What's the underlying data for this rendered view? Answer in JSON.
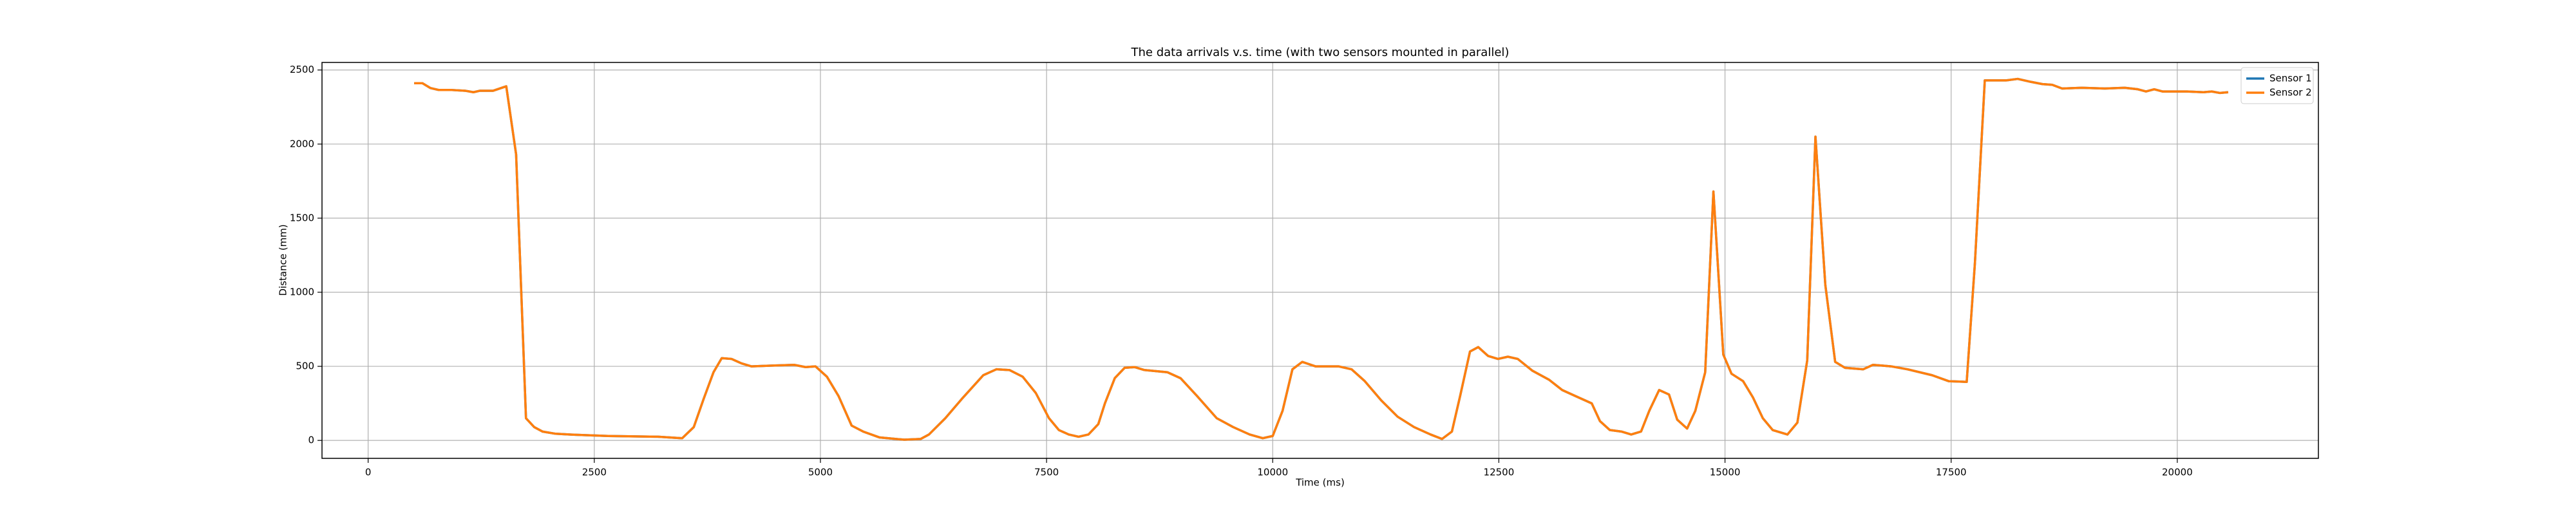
{
  "chart_data": {
    "type": "line",
    "title": "The data arrivals v.s. time (with two sensors mounted in parallel)",
    "xlabel": "Time (ms)",
    "ylabel": "Distance (mm)",
    "x": [
      509,
      600,
      690,
      782,
      927,
      1073,
      1164,
      1236,
      1382,
      1527,
      1636,
      1745,
      1836,
      1927,
      2073,
      2290,
      2654,
      3200,
      3472,
      3600,
      3709,
      3818,
      3909,
      4018,
      4127,
      4236,
      4472,
      4709,
      4836,
      4945,
      5072,
      5200,
      5345,
      5472,
      5654,
      5927,
      6109,
      6200,
      6381,
      6563,
      6800,
      6945,
      7090,
      7236,
      7381,
      7527,
      7636,
      7745,
      7854,
      7963,
      8072,
      8145,
      8254,
      8363,
      8472,
      8581,
      8836,
      8981,
      9163,
      9381,
      9563,
      9745,
      9890,
      10000,
      10109,
      10218,
      10327,
      10472,
      10727,
      10872,
      11018,
      11200,
      11381,
      11563,
      11745,
      11872,
      11981,
      12072,
      12181,
      12272,
      12381,
      12490,
      12600,
      12709,
      12872,
      13054,
      13200,
      13345,
      13527,
      13618,
      13727,
      13854,
      13963,
      14072,
      14163,
      14272,
      14381,
      14472,
      14581,
      14672,
      14781,
      14872,
      14981,
      15072,
      15200,
      15309,
      15418,
      15527,
      15690,
      15800,
      15909,
      16000,
      16109,
      16218,
      16327,
      16527,
      16636,
      16836,
      17018,
      17290,
      17472,
      17672,
      17763,
      17872,
      18109,
      18236,
      18381,
      18509,
      18618,
      18727,
      18945,
      19200,
      19418,
      19563,
      19654,
      19745,
      19836,
      20109,
      20290,
      20381,
      20472,
      20563
    ],
    "series": [
      {
        "name": "Sensor 1",
        "color": "#1f77b4",
        "values": [
          2411,
          2411,
          2378,
          2365,
          2365,
          2360,
          2350,
          2360,
          2360,
          2390,
          1930,
          150,
          90,
          60,
          45,
          38,
          30,
          25,
          15,
          90,
          280,
          460,
          555,
          550,
          520,
          500,
          505,
          510,
          495,
          500,
          430,
          300,
          100,
          60,
          20,
          5,
          10,
          40,
          150,
          280,
          440,
          480,
          475,
          430,
          320,
          150,
          70,
          40,
          25,
          40,
          110,
          250,
          420,
          490,
          495,
          475,
          460,
          420,
          300,
          150,
          90,
          40,
          15,
          30,
          200,
          480,
          530,
          500,
          500,
          480,
          400,
          270,
          160,
          90,
          40,
          10,
          60,
          300,
          600,
          630,
          570,
          550,
          565,
          550,
          470,
          410,
          340,
          300,
          250,
          130,
          70,
          60,
          40,
          60,
          200,
          340,
          310,
          140,
          80,
          200,
          460,
          1680,
          580,
          450,
          400,
          290,
          150,
          70,
          40,
          120,
          540,
          2050,
          1050,
          530,
          490,
          480,
          510,
          500,
          480,
          440,
          400,
          395,
          1200,
          2430,
          2430,
          2440,
          2420,
          2405,
          2400,
          2375,
          2380,
          2375,
          2380,
          2370,
          2355,
          2370,
          2355,
          2355,
          2350,
          2355,
          2345,
          2350
        ]
      },
      {
        "name": "Sensor 2",
        "color": "#ff7f0e",
        "values": [
          2411,
          2411,
          2378,
          2365,
          2365,
          2360,
          2350,
          2360,
          2360,
          2390,
          1930,
          150,
          90,
          60,
          45,
          38,
          30,
          25,
          15,
          90,
          280,
          460,
          555,
          550,
          520,
          500,
          505,
          510,
          495,
          500,
          430,
          300,
          100,
          60,
          20,
          5,
          10,
          40,
          150,
          280,
          440,
          480,
          475,
          430,
          320,
          150,
          70,
          40,
          25,
          40,
          110,
          250,
          420,
          490,
          495,
          475,
          460,
          420,
          300,
          150,
          90,
          40,
          15,
          30,
          200,
          480,
          530,
          500,
          500,
          480,
          400,
          270,
          160,
          90,
          40,
          10,
          60,
          300,
          600,
          630,
          570,
          550,
          565,
          550,
          470,
          410,
          340,
          300,
          250,
          130,
          70,
          60,
          40,
          60,
          200,
          340,
          310,
          140,
          80,
          200,
          460,
          1680,
          580,
          450,
          400,
          290,
          150,
          70,
          40,
          120,
          540,
          2050,
          1050,
          530,
          490,
          480,
          510,
          500,
          480,
          440,
          400,
          395,
          1200,
          2430,
          2430,
          2440,
          2420,
          2405,
          2400,
          2375,
          2380,
          2375,
          2380,
          2370,
          2355,
          2370,
          2355,
          2355,
          2350,
          2355,
          2345,
          2350
        ]
      }
    ],
    "xlim": [
      -510,
      21560
    ],
    "ylim": [
      -121,
      2551
    ],
    "xticks": [
      0,
      2500,
      5000,
      7500,
      10000,
      12500,
      15000,
      17500,
      20000
    ],
    "yticks": [
      0,
      500,
      1000,
      1500,
      2000,
      2500
    ],
    "grid": true,
    "legend": "upper right"
  }
}
